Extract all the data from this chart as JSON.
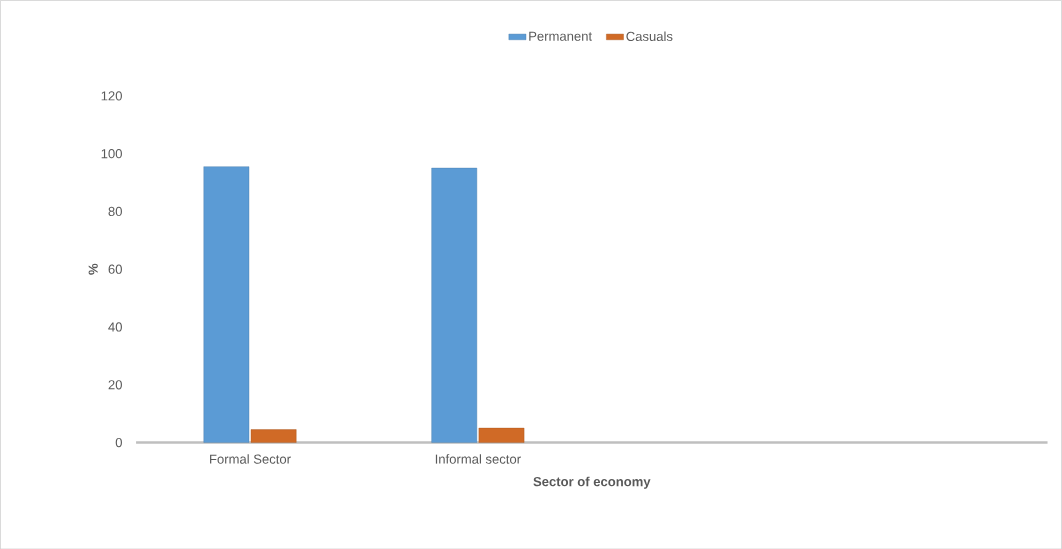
{
  "chart_data": {
    "type": "bar",
    "xlabel": "Sector of economy",
    "ylabel": "%",
    "categories": [
      "Formal Sector",
      "Informal sector",
      null,
      null
    ],
    "series": [
      {
        "name": "Permanent",
        "color": "#5b9bd5",
        "values": [
          95.5,
          95,
          null,
          null
        ]
      },
      {
        "name": "Casuals",
        "color": "#d06a26",
        "values": [
          4.5,
          5,
          null,
          null
        ]
      }
    ],
    "ylim": [
      0,
      120
    ],
    "yticks": [
      0,
      20,
      40,
      60,
      80,
      100,
      120
    ],
    "legend": "top"
  }
}
